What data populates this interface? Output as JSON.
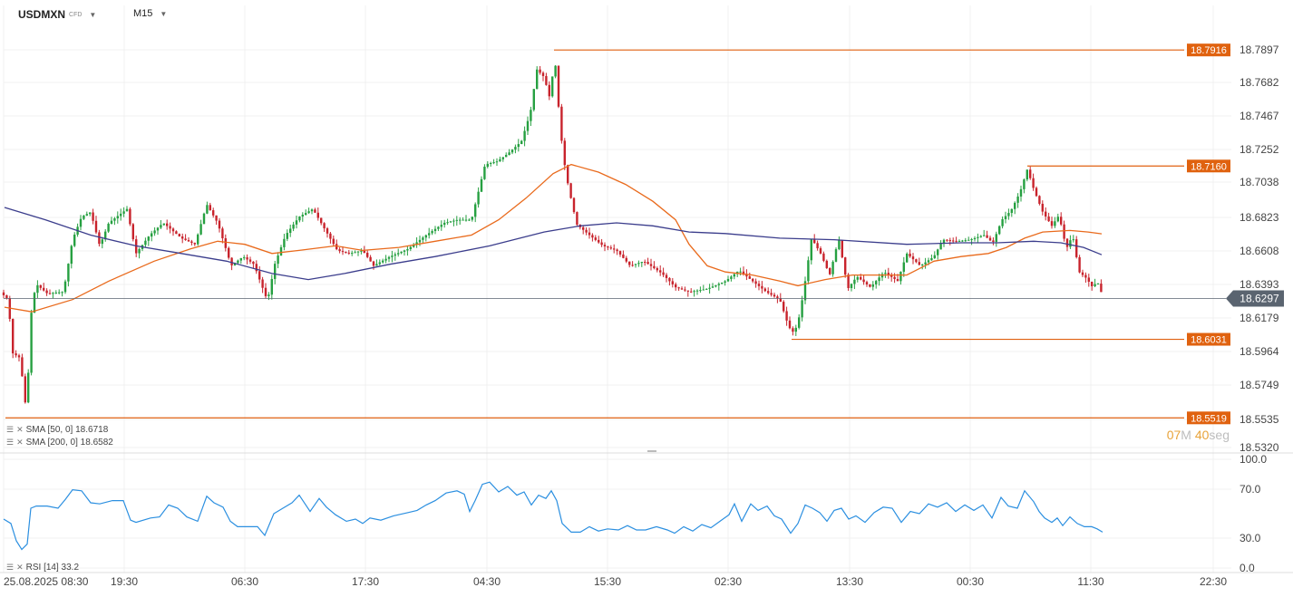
{
  "header": {
    "symbol": "USDMXN",
    "instrument_type": "CFD",
    "timeframe": "M15"
  },
  "icons": [
    "dropdown-caret-icon",
    "indicator-settings-icon",
    "close-icon"
  ],
  "colors": {
    "bullish": "#26a041",
    "bearish": "#c8232c",
    "sma50": "#e96a1c",
    "sma200": "#3b3d8c",
    "level_line": "#e06010",
    "level_tag": "#e0620f",
    "price_line": "#5a6470",
    "rsi": "#2b8fe0"
  },
  "indicators": [
    {
      "label": "SMA",
      "params": "[50, 0]",
      "value": "18.6718"
    },
    {
      "label": "SMA",
      "params": "[200, 0]",
      "value": "18.6582"
    }
  ],
  "timer": {
    "minutes": "07",
    "m_unit": "M",
    "seconds": "40",
    "s_unit": "seg"
  },
  "rsi_legend": {
    "label": "RSI",
    "params": "[14]",
    "value": "33.2"
  },
  "chart_data": [
    {
      "type": "candlestick",
      "title": "USDMXN M15",
      "x_tick_labels": [
        "25.08.2025  08:30",
        "19:30",
        "06:30",
        "17:30",
        "04:30",
        "15:30",
        "02:30",
        "13:30",
        "00:30",
        "11:30",
        "22:30"
      ],
      "y_tick_labels": [
        "18.7897",
        "18.7682",
        "18.7467",
        "18.7252",
        "18.7038",
        "18.6823",
        "18.6608",
        "18.6393",
        "18.6179",
        "18.5964",
        "18.5749",
        "18.5535",
        "18.5320"
      ],
      "ylim": [
        18.532,
        18.7982
      ],
      "current_price": 18.6297,
      "current_price_label": "18.6297",
      "horizontal_levels": [
        {
          "value": 18.7916,
          "label": "18.7916"
        },
        {
          "value": 18.716,
          "label": "18.7160"
        },
        {
          "value": 18.6031,
          "label": "18.6031"
        },
        {
          "value": 18.5519,
          "label": "18.5519"
        }
      ],
      "series": [
        {
          "name": "SMA [50, 0]",
          "kind": "line"
        },
        {
          "name": "SMA [200, 0]",
          "kind": "line"
        }
      ],
      "close_path": [
        [
          0,
          18.634
        ],
        [
          9,
          18.629
        ],
        [
          14,
          18.594
        ],
        [
          22,
          18.591
        ],
        [
          29,
          18.556
        ],
        [
          35,
          18.625
        ],
        [
          40,
          18.639
        ],
        [
          52,
          18.633
        ],
        [
          70,
          18.634
        ],
        [
          80,
          18.668
        ],
        [
          90,
          18.683
        ],
        [
          100,
          18.686
        ],
        [
          110,
          18.664
        ],
        [
          120,
          18.679
        ],
        [
          140,
          18.688
        ],
        [
          150,
          18.659
        ],
        [
          165,
          18.671
        ],
        [
          180,
          18.679
        ],
        [
          200,
          18.669
        ],
        [
          215,
          18.665
        ],
        [
          228,
          18.691
        ],
        [
          240,
          18.679
        ],
        [
          255,
          18.651
        ],
        [
          268,
          18.657
        ],
        [
          280,
          18.652
        ],
        [
          295,
          18.628
        ],
        [
          303,
          18.652
        ],
        [
          315,
          18.671
        ],
        [
          330,
          18.683
        ],
        [
          345,
          18.688
        ],
        [
          360,
          18.673
        ],
        [
          372,
          18.661
        ],
        [
          385,
          18.659
        ],
        [
          400,
          18.661
        ],
        [
          412,
          18.651
        ],
        [
          430,
          18.657
        ],
        [
          450,
          18.662
        ],
        [
          470,
          18.671
        ],
        [
          490,
          18.679
        ],
        [
          505,
          18.681
        ],
        [
          520,
          18.681
        ],
        [
          535,
          18.717
        ],
        [
          548,
          18.719
        ],
        [
          560,
          18.724
        ],
        [
          575,
          18.732
        ],
        [
          585,
          18.751
        ],
        [
          592,
          18.779
        ],
        [
          600,
          18.774
        ],
        [
          606,
          18.761
        ],
        [
          612,
          18.786
        ],
        [
          618,
          18.739
        ],
        [
          624,
          18.711
        ],
        [
          630,
          18.694
        ],
        [
          636,
          18.678
        ],
        [
          650,
          18.671
        ],
        [
          665,
          18.664
        ],
        [
          680,
          18.661
        ],
        [
          695,
          18.651
        ],
        [
          710,
          18.654
        ],
        [
          730,
          18.646
        ],
        [
          745,
          18.637
        ],
        [
          760,
          18.634
        ],
        [
          780,
          18.636
        ],
        [
          800,
          18.641
        ],
        [
          815,
          18.648
        ],
        [
          830,
          18.641
        ],
        [
          845,
          18.634
        ],
        [
          860,
          18.629
        ],
        [
          870,
          18.611
        ],
        [
          876,
          18.607
        ],
        [
          882,
          18.619
        ],
        [
          888,
          18.641
        ],
        [
          895,
          18.669
        ],
        [
          905,
          18.659
        ],
        [
          915,
          18.645
        ],
        [
          925,
          18.669
        ],
        [
          935,
          18.636
        ],
        [
          945,
          18.644
        ],
        [
          960,
          18.637
        ],
        [
          975,
          18.647
        ],
        [
          990,
          18.641
        ],
        [
          1000,
          18.659
        ],
        [
          1015,
          18.651
        ],
        [
          1030,
          18.657
        ],
        [
          1040,
          18.668
        ],
        [
          1055,
          18.667
        ],
        [
          1070,
          18.668
        ],
        [
          1085,
          18.671
        ],
        [
          1095,
          18.666
        ],
        [
          1105,
          18.681
        ],
        [
          1115,
          18.687
        ],
        [
          1125,
          18.699
        ],
        [
          1133,
          18.714
        ],
        [
          1140,
          18.701
        ],
        [
          1150,
          18.686
        ],
        [
          1160,
          18.677
        ],
        [
          1168,
          18.684
        ],
        [
          1176,
          18.662
        ],
        [
          1183,
          18.671
        ],
        [
          1190,
          18.647
        ],
        [
          1198,
          18.643
        ],
        [
          1205,
          18.637
        ],
        [
          1210,
          18.641
        ],
        [
          1217,
          18.6297
        ]
      ],
      "sma50_path": [
        [
          5,
          18.624
        ],
        [
          35,
          18.621
        ],
        [
          80,
          18.629
        ],
        [
          120,
          18.641
        ],
        [
          170,
          18.654
        ],
        [
          210,
          18.662
        ],
        [
          240,
          18.667
        ],
        [
          270,
          18.665
        ],
        [
          300,
          18.659
        ],
        [
          330,
          18.661
        ],
        [
          370,
          18.664
        ],
        [
          400,
          18.661
        ],
        [
          440,
          18.663
        ],
        [
          480,
          18.667
        ],
        [
          520,
          18.671
        ],
        [
          550,
          18.681
        ],
        [
          580,
          18.695
        ],
        [
          610,
          18.711
        ],
        [
          630,
          18.717
        ],
        [
          660,
          18.712
        ],
        [
          690,
          18.704
        ],
        [
          720,
          18.693
        ],
        [
          745,
          18.681
        ],
        [
          760,
          18.665
        ],
        [
          780,
          18.651
        ],
        [
          800,
          18.647
        ],
        [
          830,
          18.645
        ],
        [
          860,
          18.641
        ],
        [
          880,
          18.638
        ],
        [
          910,
          18.642
        ],
        [
          940,
          18.645
        ],
        [
          970,
          18.645
        ],
        [
          1000,
          18.645
        ],
        [
          1030,
          18.654
        ],
        [
          1060,
          18.657
        ],
        [
          1090,
          18.659
        ],
        [
          1110,
          18.663
        ],
        [
          1130,
          18.669
        ],
        [
          1150,
          18.673
        ],
        [
          1180,
          18.674
        ],
        [
          1200,
          18.673
        ],
        [
          1215,
          18.6718
        ]
      ],
      "sma200_path": [
        [
          5,
          18.689
        ],
        [
          50,
          18.681
        ],
        [
          100,
          18.671
        ],
        [
          150,
          18.664
        ],
        [
          200,
          18.659
        ],
        [
          250,
          18.654
        ],
        [
          300,
          18.646
        ],
        [
          340,
          18.642
        ],
        [
          380,
          18.646
        ],
        [
          430,
          18.652
        ],
        [
          480,
          18.657
        ],
        [
          540,
          18.664
        ],
        [
          600,
          18.673
        ],
        [
          640,
          18.677
        ],
        [
          680,
          18.679
        ],
        [
          720,
          18.677
        ],
        [
          760,
          18.673
        ],
        [
          800,
          18.672
        ],
        [
          860,
          18.669
        ],
        [
          920,
          18.668
        ],
        [
          1000,
          18.665
        ],
        [
          1060,
          18.666
        ],
        [
          1100,
          18.666
        ],
        [
          1140,
          18.667
        ],
        [
          1170,
          18.666
        ],
        [
          1195,
          18.663
        ],
        [
          1215,
          18.6582
        ]
      ]
    },
    {
      "type": "line",
      "title": "RSI [14]",
      "y_tick_labels": [
        "100.0",
        "70.0",
        "30.0",
        "0.0"
      ],
      "ylim": [
        0,
        100
      ],
      "current_value": 33.2,
      "series": [
        {
          "name": "RSI [14]",
          "kind": "line"
        }
      ],
      "points": [
        [
          4,
          45
        ],
        [
          12,
          41
        ],
        [
          18,
          25
        ],
        [
          24,
          17
        ],
        [
          30,
          22
        ],
        [
          34,
          55
        ],
        [
          40,
          57
        ],
        [
          52,
          57
        ],
        [
          64,
          55
        ],
        [
          72,
          63
        ],
        [
          80,
          72
        ],
        [
          90,
          71
        ],
        [
          100,
          60
        ],
        [
          110,
          59
        ],
        [
          124,
          62
        ],
        [
          136,
          62
        ],
        [
          144,
          44
        ],
        [
          150,
          42
        ],
        [
          166,
          46
        ],
        [
          176,
          47
        ],
        [
          186,
          58
        ],
        [
          196,
          55
        ],
        [
          206,
          47
        ],
        [
          218,
          43
        ],
        [
          228,
          66
        ],
        [
          236,
          60
        ],
        [
          246,
          56
        ],
        [
          254,
          43
        ],
        [
          262,
          38
        ],
        [
          274,
          38
        ],
        [
          284,
          38
        ],
        [
          292,
          30
        ],
        [
          302,
          50
        ],
        [
          312,
          55
        ],
        [
          322,
          60
        ],
        [
          330,
          67
        ],
        [
          342,
          52
        ],
        [
          352,
          64
        ],
        [
          360,
          56
        ],
        [
          370,
          49
        ],
        [
          382,
          43
        ],
        [
          392,
          45
        ],
        [
          400,
          41
        ],
        [
          408,
          46
        ],
        [
          420,
          44
        ],
        [
          434,
          48
        ],
        [
          450,
          51
        ],
        [
          460,
          53
        ],
        [
          470,
          58
        ],
        [
          480,
          62
        ],
        [
          492,
          69
        ],
        [
          504,
          71
        ],
        [
          512,
          68
        ],
        [
          518,
          52
        ],
        [
          524,
          62
        ],
        [
          532,
          77
        ],
        [
          540,
          79
        ],
        [
          550,
          70
        ],
        [
          560,
          75
        ],
        [
          570,
          67
        ],
        [
          578,
          70
        ],
        [
          586,
          58
        ],
        [
          594,
          67
        ],
        [
          602,
          64
        ],
        [
          608,
          71
        ],
        [
          614,
          62
        ],
        [
          620,
          41
        ],
        [
          630,
          33
        ],
        [
          640,
          33
        ],
        [
          650,
          38
        ],
        [
          660,
          34
        ],
        [
          670,
          36
        ],
        [
          682,
          35
        ],
        [
          692,
          39
        ],
        [
          702,
          35
        ],
        [
          712,
          35
        ],
        [
          724,
          38
        ],
        [
          736,
          35
        ],
        [
          744,
          32
        ],
        [
          754,
          38
        ],
        [
          764,
          34
        ],
        [
          774,
          40
        ],
        [
          784,
          37
        ],
        [
          794,
          43
        ],
        [
          804,
          49
        ],
        [
          810,
          59
        ],
        [
          818,
          43
        ],
        [
          828,
          59
        ],
        [
          836,
          53
        ],
        [
          846,
          57
        ],
        [
          854,
          48
        ],
        [
          862,
          45
        ],
        [
          872,
          32
        ],
        [
          880,
          41
        ],
        [
          888,
          58
        ],
        [
          896,
          55
        ],
        [
          904,
          51
        ],
        [
          912,
          43
        ],
        [
          920,
          53
        ],
        [
          928,
          55
        ],
        [
          936,
          45
        ],
        [
          944,
          48
        ],
        [
          954,
          42
        ],
        [
          964,
          51
        ],
        [
          974,
          56
        ],
        [
          984,
          55
        ],
        [
          994,
          42
        ],
        [
          1004,
          52
        ],
        [
          1014,
          50
        ],
        [
          1024,
          59
        ],
        [
          1034,
          56
        ],
        [
          1044,
          60
        ],
        [
          1054,
          52
        ],
        [
          1064,
          58
        ],
        [
          1074,
          53
        ],
        [
          1084,
          58
        ],
        [
          1094,
          46
        ],
        [
          1104,
          65
        ],
        [
          1112,
          57
        ],
        [
          1122,
          55
        ],
        [
          1130,
          71
        ],
        [
          1140,
          61
        ],
        [
          1146,
          52
        ],
        [
          1152,
          46
        ],
        [
          1160,
          42
        ],
        [
          1166,
          46
        ],
        [
          1172,
          39
        ],
        [
          1180,
          47
        ],
        [
          1188,
          41
        ],
        [
          1196,
          38
        ],
        [
          1204,
          38
        ],
        [
          1210,
          36
        ],
        [
          1216,
          33
        ]
      ]
    }
  ]
}
